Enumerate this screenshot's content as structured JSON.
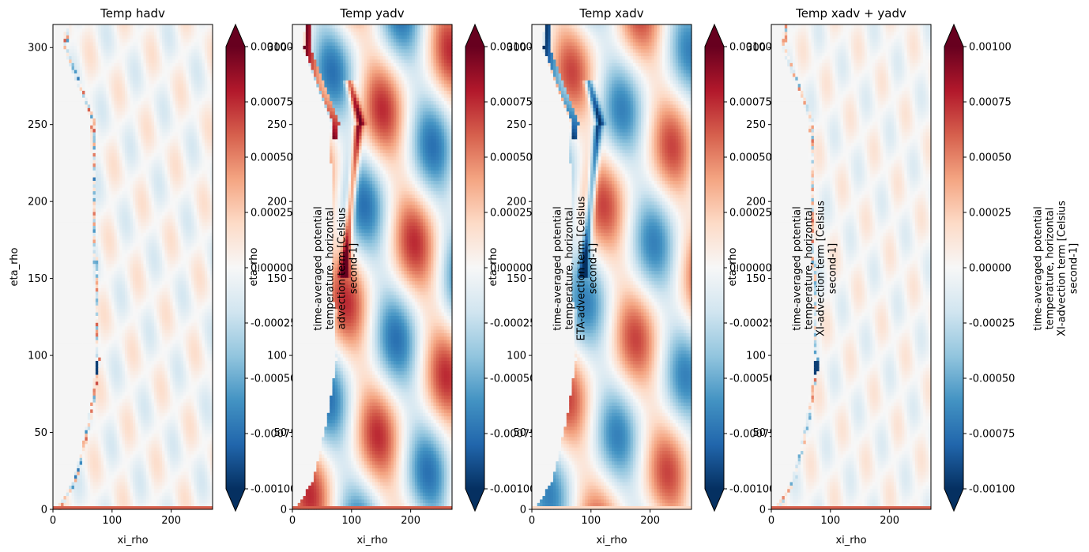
{
  "colormap": {
    "name": "RdBu_r",
    "stops": [
      "#053061",
      "#2166ac",
      "#4393c3",
      "#92c5de",
      "#d1e5f0",
      "#f7f7f7",
      "#fddbc7",
      "#f4a582",
      "#d6604d",
      "#b2182b",
      "#67001f"
    ],
    "land_color": "#f5f5f5"
  },
  "chart_data": [
    {
      "type": "heatmap",
      "title": "Temp hadv",
      "xlabel": "xi_rho",
      "ylabel": "eta_rho",
      "xlim": [
        0,
        270
      ],
      "ylim": [
        0,
        315
      ],
      "xticks": [
        "0",
        "100",
        "200"
      ],
      "yticks": [
        "0",
        "50",
        "100",
        "150",
        "200",
        "250",
        "300"
      ],
      "colorbar": {
        "label": "",
        "vmin": -0.001,
        "vmax": 0.001,
        "extend": "both",
        "ticks": [
          "-0.00100",
          "-0.00075",
          "-0.00050",
          "-0.00025",
          "0.00000",
          "0.00025",
          "0.00050",
          "0.00075",
          "0.00100"
        ]
      }
    },
    {
      "type": "heatmap",
      "title": "Temp yadv",
      "xlabel": "xi_rho",
      "ylabel": "eta_rho",
      "xlim": [
        0,
        270
      ],
      "ylim": [
        0,
        315
      ],
      "xticks": [
        "0",
        "100",
        "200"
      ],
      "yticks": [
        "0",
        "50",
        "100",
        "150",
        "200",
        "250",
        "300"
      ],
      "colorbar": {
        "label": "time-averaged potential temperature, horizontal advection term [Celsius second-1]",
        "vmin": -0.001,
        "vmax": 0.001,
        "extend": "both",
        "ticks": [
          "-0.00100",
          "-0.00075",
          "-0.00050",
          "-0.00025",
          "0.00000",
          "0.00025",
          "0.00050",
          "0.00075",
          "0.00100"
        ]
      }
    },
    {
      "type": "heatmap",
      "title": "Temp xadv",
      "xlabel": "xi_rho",
      "ylabel": "eta_rho",
      "xlim": [
        0,
        270
      ],
      "ylim": [
        0,
        315
      ],
      "xticks": [
        "0",
        "100",
        "200"
      ],
      "yticks": [
        "0",
        "50",
        "100",
        "150",
        "200",
        "250",
        "300"
      ],
      "colorbar": {
        "label": "time-averaged potential temperature, horizontal ETA-advection term [Celsius second-1]",
        "vmin": -0.001,
        "vmax": 0.001,
        "extend": "both",
        "ticks": [
          "-0.00100",
          "-0.00075",
          "-0.00050",
          "-0.00025",
          "0.00000",
          "0.00025",
          "0.00050",
          "0.00075",
          "0.00100"
        ]
      }
    },
    {
      "type": "heatmap",
      "title": "Temp xadv + yadv",
      "xlabel": "xi_rho",
      "ylabel": "eta_rho",
      "xlim": [
        0,
        270
      ],
      "ylim": [
        0,
        315
      ],
      "xticks": [
        "0",
        "100",
        "200"
      ],
      "yticks": [
        "0",
        "50",
        "100",
        "150",
        "200",
        "250",
        "300"
      ],
      "colorbar": {
        "label": "time-averaged potential temperature, horizontal XI-advection term [Celsius second-1]",
        "vmin": -0.001,
        "vmax": 0.001,
        "extend": "both",
        "ticks": [
          "-0.00100",
          "-0.00075",
          "-0.00050",
          "-0.00025",
          "0.00000",
          "0.00025",
          "0.00050",
          "0.00075",
          "0.00100"
        ]
      }
    },
    {
      "type": "heatmap",
      "title": "",
      "xlabel": "",
      "ylabel": "",
      "colorbar": {
        "label": "time-averaged potential temperature, horizontal XI-advection term [Celsius second-1]",
        "vmin": -0.001,
        "vmax": 0.001,
        "extend": "both",
        "ticks": []
      }
    }
  ]
}
